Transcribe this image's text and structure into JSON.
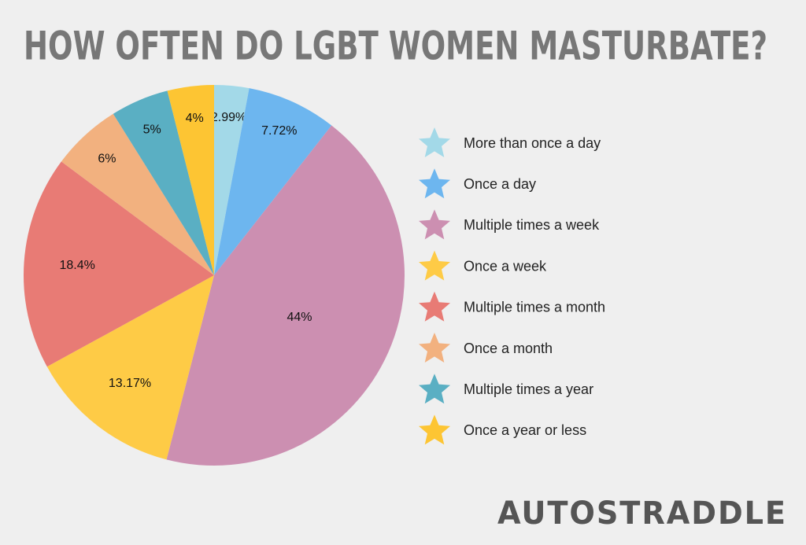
{
  "chart_data": {
    "type": "pie",
    "title": "HOW OFTEN DO LGBT WOMEN MASTURBATE?",
    "categories": [
      "More than once a day",
      "Once a day",
      "Multiple times a week",
      "Once a week",
      "Multiple times a month",
      "Once a month",
      "Multiple times a year",
      "Once a year or less"
    ],
    "values": [
      2.99,
      7.72,
      44,
      13.17,
      18.4,
      6,
      5,
      4
    ],
    "value_labels": [
      "2.99%",
      "7.72%",
      "44%",
      "13.17%",
      "18.4%",
      "6%",
      "5%",
      "4%"
    ],
    "colors": [
      "#a3d9e8",
      "#6db6ef",
      "#cc8fb1",
      "#fecb46",
      "#e87b75",
      "#f2b17f",
      "#5aafc3",
      "#fdc533"
    ],
    "legend": "right"
  },
  "logo": "AUTOSTRADDLE"
}
